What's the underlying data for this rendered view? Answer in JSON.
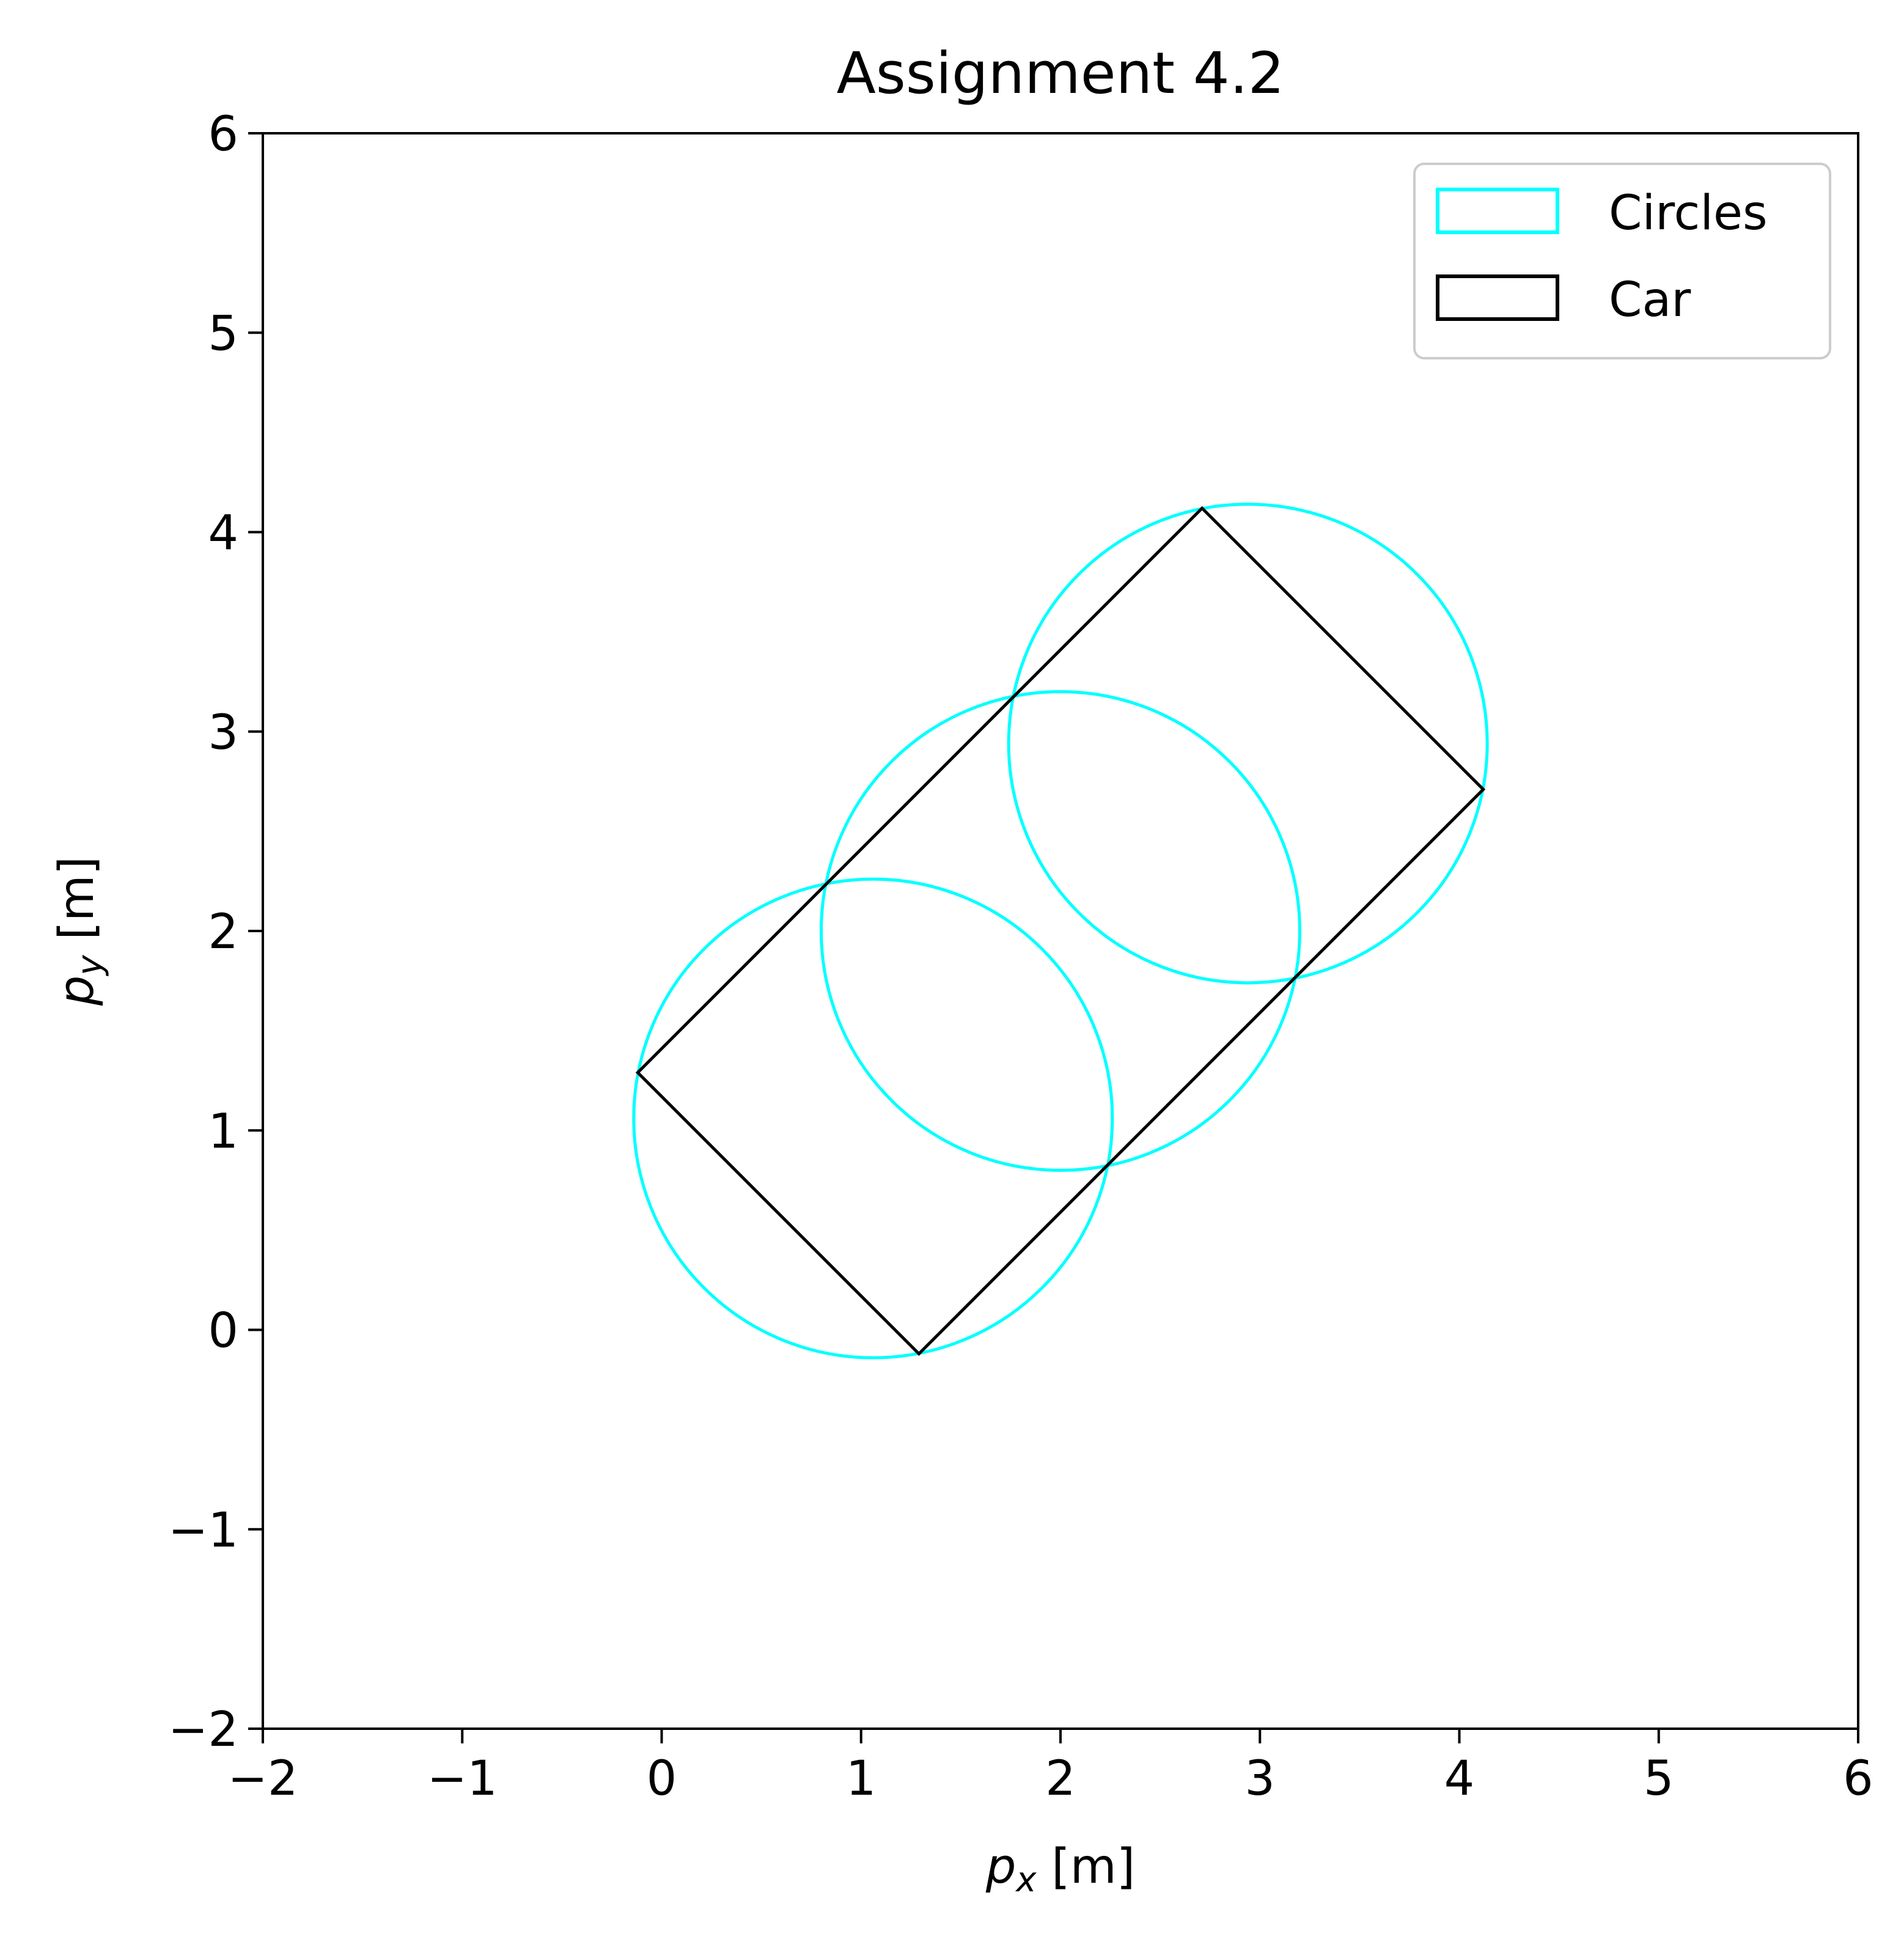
{
  "chart_data": {
    "type": "line",
    "title": "Assignment 4.2",
    "xlabel": {
      "var": "p",
      "sub": "x",
      "unit": " [m]"
    },
    "ylabel": {
      "var": "p",
      "sub": "y",
      "unit": " [m]"
    },
    "xlim": [
      -2,
      6
    ],
    "ylim": [
      -2,
      6
    ],
    "xticks": [
      -2,
      -1,
      0,
      1,
      2,
      3,
      4,
      5,
      6
    ],
    "yticks": [
      -2,
      -1,
      0,
      1,
      2,
      3,
      4,
      5,
      6
    ],
    "xtick_labels": [
      "−2",
      "−1",
      "0",
      "1",
      "2",
      "3",
      "4",
      "5",
      "6"
    ],
    "ytick_labels": [
      "−2",
      "−1",
      "0",
      "1",
      "2",
      "3",
      "4",
      "5",
      "6"
    ],
    "grid": false,
    "legend": {
      "position": "upper right",
      "entries": [
        {
          "label": "Circles",
          "color": "#00ffff"
        },
        {
          "label": "Car",
          "color": "#000000"
        }
      ]
    },
    "series": [
      {
        "name": "Circles",
        "color": "#00ffff",
        "kind": "circles",
        "circles": [
          {
            "cx": 1.06,
            "cy": 1.06,
            "r": 1.2
          },
          {
            "cx": 2.0,
            "cy": 2.0,
            "r": 1.2
          },
          {
            "cx": 2.94,
            "cy": 2.94,
            "r": 1.2
          }
        ]
      },
      {
        "name": "Car",
        "color": "#000000",
        "kind": "polygon",
        "points": [
          [
            -0.12,
            1.29
          ],
          [
            2.71,
            4.12
          ],
          [
            4.12,
            2.71
          ],
          [
            1.29,
            -0.12
          ]
        ]
      }
    ]
  }
}
